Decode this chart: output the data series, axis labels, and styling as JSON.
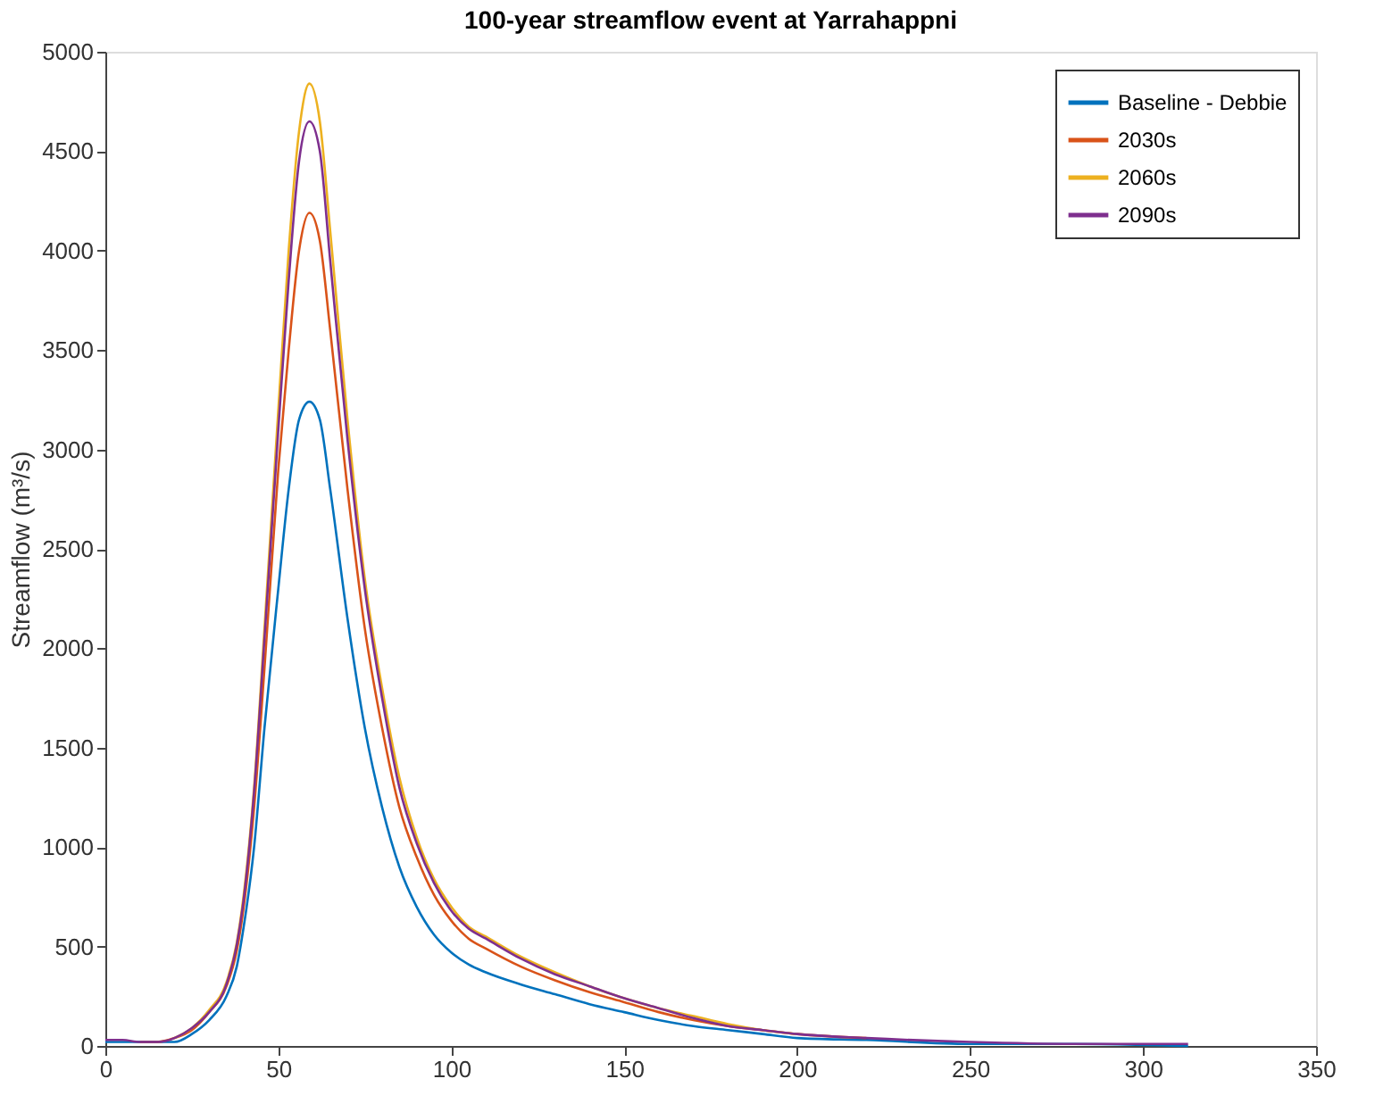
{
  "chart_data": {
    "type": "line",
    "title": "100-year streamflow event at Yarrahappni",
    "ylabel": "Streamflow (m³/s)",
    "x": [
      0,
      5,
      10,
      15,
      20,
      25,
      30,
      35,
      38,
      40,
      43,
      46,
      50,
      53,
      56,
      59,
      62,
      65,
      70,
      75,
      80,
      85,
      90,
      95,
      100,
      105,
      110,
      120,
      130,
      140,
      150,
      160,
      170,
      180,
      190,
      200,
      220,
      250,
      280,
      313
    ],
    "series": [
      {
        "name": "Baseline - Debbie",
        "color": "#0072bd",
        "values": [
          20,
          20,
          20,
          20,
          20,
          60,
          130,
          250,
          400,
          600,
          1000,
          1600,
          2300,
          2800,
          3150,
          3240,
          3150,
          2800,
          2150,
          1600,
          1200,
          900,
          700,
          560,
          470,
          410,
          370,
          310,
          260,
          210,
          170,
          130,
          100,
          80,
          60,
          40,
          30,
          10,
          10,
          0
        ]
      },
      {
        "name": "2030s",
        "color": "#d95319",
        "values": [
          null,
          null,
          20,
          20,
          40,
          80,
          170,
          300,
          480,
          700,
          1200,
          1900,
          2900,
          3500,
          4000,
          4190,
          4050,
          3600,
          2800,
          2100,
          1600,
          1200,
          950,
          760,
          630,
          540,
          490,
          400,
          330,
          270,
          220,
          170,
          130,
          100,
          80,
          60,
          40,
          null,
          null,
          null
        ]
      },
      {
        "name": "2060s",
        "color": "#edb120",
        "values": [
          null,
          null,
          null,
          null,
          40,
          90,
          180,
          320,
          520,
          760,
          1300,
          2100,
          3200,
          4000,
          4600,
          4840,
          4650,
          4100,
          3150,
          2350,
          1800,
          1350,
          1050,
          840,
          700,
          600,
          550,
          450,
          370,
          300,
          240,
          190,
          150,
          110,
          80,
          60,
          null,
          null,
          null,
          null
        ]
      },
      {
        "name": "2090s",
        "color": "#7e2f8e",
        "values": [
          30,
          30,
          20,
          20,
          40,
          90,
          170,
          310,
          510,
          740,
          1280,
          2050,
          3100,
          3850,
          4450,
          4650,
          4500,
          3950,
          3050,
          2300,
          1750,
          1300,
          1020,
          820,
          680,
          590,
          540,
          440,
          360,
          300,
          240,
          190,
          140,
          100,
          80,
          60,
          40,
          20,
          10,
          10
        ]
      }
    ],
    "xlim": [
      0,
      350
    ],
    "xticks": [
      0,
      50,
      100,
      150,
      200,
      250,
      300,
      350
    ],
    "ylim": [
      0,
      5000
    ],
    "yticks": [
      0,
      500,
      1000,
      1500,
      2000,
      2500,
      3000,
      3500,
      4000,
      4500,
      5000
    ],
    "legend": "top right",
    "grid": false
  }
}
